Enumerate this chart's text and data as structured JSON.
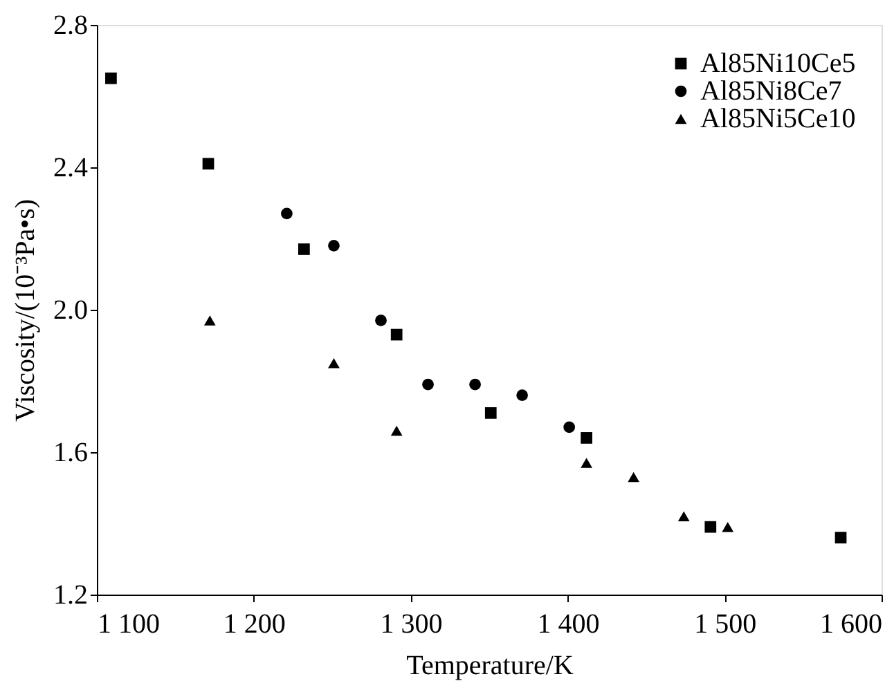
{
  "chart_data": {
    "type": "scatter",
    "xlabel": "Temperature/K",
    "ylabel": "Viscosity/(10⁻³Pa•s)",
    "xlim": [
      1100,
      1600
    ],
    "ylim": [
      1.2,
      2.8
    ],
    "xticks": [
      {
        "value": 1100,
        "label": "1 100"
      },
      {
        "value": 1200,
        "label": "1 200"
      },
      {
        "value": 1300,
        "label": "1 300"
      },
      {
        "value": 1400,
        "label": "1 400"
      },
      {
        "value": 1500,
        "label": "1 500"
      },
      {
        "value": 1600,
        "label": "1 600"
      }
    ],
    "yticks": [
      {
        "value": 1.2,
        "label": "1.2"
      },
      {
        "value": 1.6,
        "label": "1.6"
      },
      {
        "value": 2.0,
        "label": "2.0"
      },
      {
        "value": 2.4,
        "label": "2.4"
      },
      {
        "value": 2.8,
        "label": "2.8"
      }
    ],
    "grid": false,
    "legend": "top right",
    "series": [
      {
        "name": "Al85Ni10Ce5",
        "color": "#000000",
        "marker": "square",
        "x": [
          1109,
          1171,
          1232,
          1291,
          1351,
          1412,
          1491,
          1574
        ],
        "values": [
          2.65,
          2.41,
          2.17,
          1.93,
          1.71,
          1.64,
          1.39,
          1.36
        ]
      },
      {
        "name": "Al85Ni8Ce7",
        "color": "#000000",
        "marker": "circle",
        "x": [
          1221,
          1251,
          1281,
          1311,
          1341,
          1371,
          1401
        ],
        "values": [
          2.27,
          2.18,
          1.97,
          1.79,
          1.79,
          1.76,
          1.67
        ]
      },
      {
        "name": "Al85Ni5Ce10",
        "color": "#000000",
        "marker": "triangle",
        "x": [
          1172,
          1251,
          1291,
          1412,
          1442,
          1474,
          1502
        ],
        "values": [
          1.97,
          1.85,
          1.66,
          1.57,
          1.53,
          1.42,
          1.39
        ]
      }
    ]
  }
}
